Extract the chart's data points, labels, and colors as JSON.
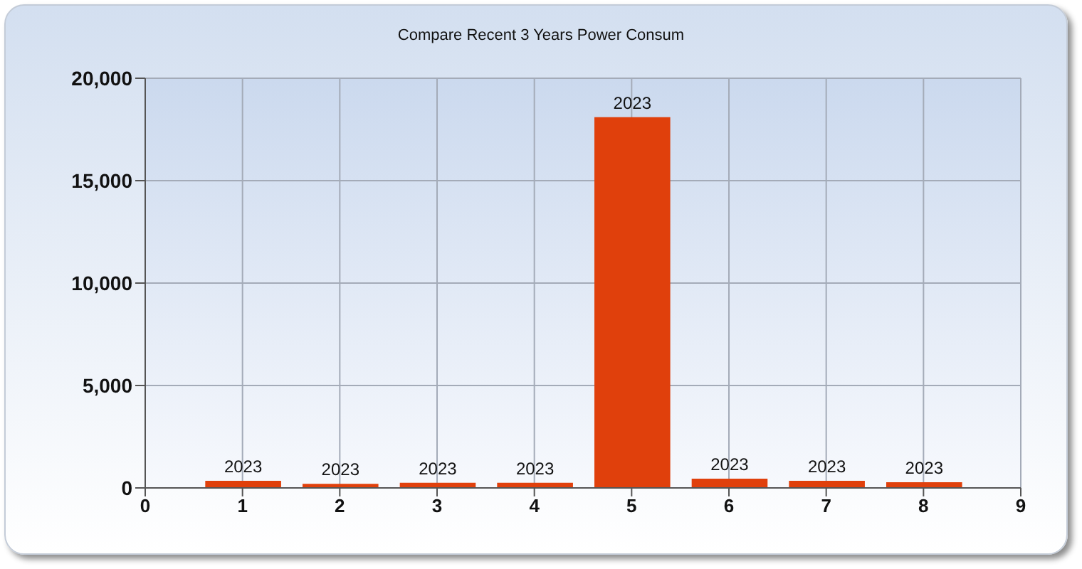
{
  "chart_data": {
    "type": "bar",
    "title": "Compare Recent 3 Years Power Consum",
    "x": [
      1,
      2,
      3,
      4,
      5,
      6,
      7,
      8
    ],
    "series": [
      {
        "name": "2023",
        "color": "#e0400c",
        "values": [
          350,
          200,
          250,
          250,
          18100,
          450,
          350,
          280
        ]
      }
    ],
    "xlim": [
      0,
      9
    ],
    "xticks": [
      0,
      1,
      2,
      3,
      4,
      5,
      6,
      7,
      8,
      9
    ],
    "ylim": [
      0,
      20000
    ],
    "yticks": [
      0,
      {
        "value": 5000,
        "label": "5,000"
      },
      {
        "value": 10000,
        "label": "10,000"
      },
      {
        "value": 15000,
        "label": "15,000"
      },
      {
        "value": 20000,
        "label": "20,000"
      }
    ],
    "grid": true
  }
}
